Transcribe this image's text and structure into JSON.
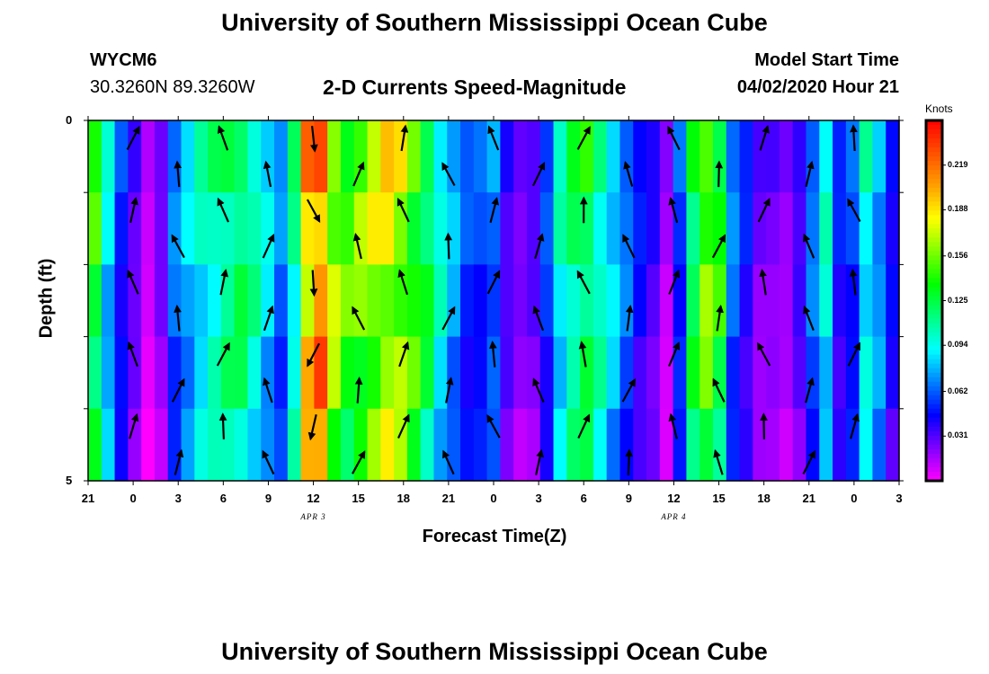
{
  "header": {
    "title": "University of Southern Mississippi Ocean Cube",
    "station": "WYCM6",
    "coords": "30.3260N 89.3260W",
    "subtitle": "2-D Currents Speed-Magnitude",
    "model_start_label": "Model Start Time",
    "model_start_value": "04/02/2020 Hour 21"
  },
  "footer": {
    "title": "University of Southern Mississippi Ocean Cube"
  },
  "chart_data": {
    "type": "heatmap",
    "xlabel": "Forecast Time(Z)",
    "ylabel": "Depth (ft)",
    "x_tick_labels": [
      "21",
      "0",
      "3",
      "6",
      "9",
      "12",
      "15",
      "18",
      "21",
      "0",
      "3",
      "6",
      "9",
      "12",
      "15",
      "18",
      "21",
      "0",
      "3"
    ],
    "date_labels": [
      {
        "text": "APR 3",
        "at_tick": 5
      },
      {
        "text": "APR 4",
        "at_tick": 13
      }
    ],
    "y_tick_labels": [
      "0",
      "5"
    ],
    "ylim": [
      0,
      5
    ],
    "colorbar": {
      "units": "Knots",
      "tick_labels": [
        "0.219",
        "0.188",
        "0.156",
        "0.125",
        "0.094",
        "0.062",
        "0.031"
      ],
      "ticks": [
        0.219,
        0.188,
        0.156,
        0.125,
        0.094,
        0.062,
        0.031
      ],
      "range": [
        0,
        0.25
      ],
      "colors": [
        "#ff00ff",
        "#8000ff",
        "#0000ff",
        "#0080ff",
        "#00ffff",
        "#00ff80",
        "#00ff00",
        "#80ff00",
        "#ffff00",
        "#ffa000",
        "#ff5000",
        "#ff0000"
      ]
    },
    "speed_by_hour": [
      0.14,
      0.09,
      0.055,
      0.035,
      0.015,
      0.03,
      0.07,
      0.085,
      0.1,
      0.11,
      0.12,
      0.125,
      0.11,
      0.09,
      0.07,
      0.11,
      0.2,
      0.22,
      0.17,
      0.15,
      0.16,
      0.17,
      0.18,
      0.17,
      0.15,
      0.13,
      0.1,
      0.08,
      0.06,
      0.06,
      0.07,
      0.04,
      0.03,
      0.035,
      0.06,
      0.1,
      0.12,
      0.13,
      0.11,
      0.09,
      0.07,
      0.05,
      0.04,
      0.02,
      0.06,
      0.13,
      0.16,
      0.14,
      0.07,
      0.05,
      0.03,
      0.03,
      0.025,
      0.04,
      0.07,
      0.1,
      0.05,
      0.06,
      0.1,
      0.08,
      0.05
    ],
    "depth_rows": 5,
    "vector_rows": 10
  }
}
